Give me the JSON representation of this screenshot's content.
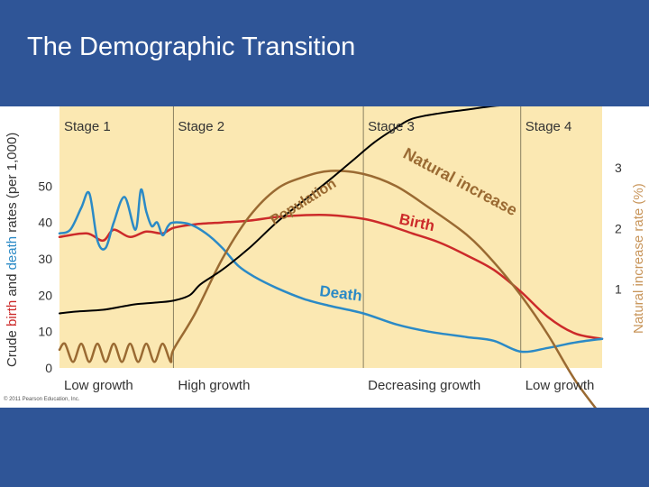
{
  "slide": {
    "title": "The Demographic Transition"
  },
  "figure": {
    "copyright": "© 2011 Pearson Education, Inc."
  },
  "colors": {
    "background": "#2f5597",
    "plot_bg": "#fbe8b2",
    "birth": "#cc2a2a",
    "death": "#2b8ac6",
    "natural_increase": "#9a6a32",
    "population": "#000000",
    "stage_divider": "#8a8060"
  },
  "chart_data": {
    "type": "line",
    "xlabel": "",
    "ylabel": {
      "parts": [
        "Crude ",
        "birth",
        " and ",
        "death",
        " rates (per 1,000)"
      ]
    },
    "y2label": "Natural increase rate (%)",
    "ylim": [
      0,
      60
    ],
    "y2lim": [
      -0.3,
      3.3
    ],
    "yticks": [
      0,
      10,
      20,
      30,
      40,
      50
    ],
    "y2ticks": [
      1,
      2,
      3
    ],
    "xlim": [
      0,
      100
    ],
    "grid": false,
    "stages": [
      {
        "label": "Stage 1",
        "x_start": 0,
        "x_end": 21
      },
      {
        "label": "Stage 2",
        "x_start": 21,
        "x_end": 56
      },
      {
        "label": "Stage 3",
        "x_start": 56,
        "x_end": 85
      },
      {
        "label": "Stage 4",
        "x_start": 85,
        "x_end": 100
      }
    ],
    "growth_labels": [
      {
        "label": "Low growth",
        "x": 0
      },
      {
        "label": "High growth",
        "x": 21
      },
      {
        "label": "Decreasing growth",
        "x": 56
      },
      {
        "label": "Low growth",
        "x": 85
      }
    ],
    "series": [
      {
        "name": "Birth",
        "axis": "left",
        "x": [
          0,
          5,
          8,
          10,
          13,
          16,
          19,
          21,
          25,
          30,
          35,
          40,
          45,
          50,
          56,
          60,
          65,
          70,
          75,
          80,
          85,
          90,
          95,
          100
        ],
        "y": [
          36,
          37,
          35,
          38,
          36,
          37.5,
          37,
          38.5,
          39.5,
          40,
          40.5,
          41.5,
          42,
          42,
          41,
          39.5,
          37,
          34.5,
          31,
          27,
          21,
          14,
          9.5,
          8
        ]
      },
      {
        "name": "Death",
        "axis": "left",
        "x": [
          0,
          2,
          4,
          5.5,
          7,
          8.5,
          10,
          12,
          14,
          15,
          16,
          17,
          18,
          19,
          20,
          21,
          24,
          27,
          30,
          33,
          36,
          40,
          45,
          50,
          56,
          62,
          68,
          75,
          80,
          85,
          90,
          95,
          100
        ],
        "y": [
          37,
          38,
          44,
          48,
          35,
          33,
          40,
          47,
          38,
          49,
          43,
          39,
          40,
          36.5,
          39,
          40,
          39.5,
          37,
          33,
          28,
          25,
          22,
          19,
          17,
          15,
          12,
          10,
          8.5,
          7.5,
          4.5,
          5.5,
          7,
          8
        ]
      },
      {
        "name": "Natural increase",
        "axis": "right",
        "x": [
          0,
          1,
          2.5,
          4,
          5.5,
          7,
          8.5,
          10,
          11.5,
          13,
          14.5,
          16,
          17.5,
          19,
          20.5,
          21,
          25,
          30,
          35,
          40,
          45,
          50,
          56,
          62,
          68,
          75,
          80,
          85,
          90,
          95,
          100
        ],
        "y": [
          0,
          0.1,
          -0.2,
          0.1,
          -0.2,
          0.1,
          -0.2,
          0.1,
          -0.2,
          0.1,
          -0.2,
          0.1,
          -0.2,
          0.1,
          -0.2,
          0,
          0.6,
          1.5,
          2.2,
          2.65,
          2.85,
          2.95,
          2.9,
          2.7,
          2.35,
          1.9,
          1.45,
          0.9,
          0.25,
          -0.5,
          -1.1
        ]
      },
      {
        "name": "Population",
        "axis": "hidden",
        "x": [
          0,
          3,
          8,
          12,
          14,
          18,
          21,
          24,
          26,
          30,
          35,
          40,
          45,
          50,
          54,
          58,
          62,
          65,
          70,
          75,
          80,
          85,
          90,
          95,
          100
        ],
        "y": [
          15,
          15.5,
          16,
          17,
          17.5,
          18,
          18.5,
          20,
          23,
          27,
          33,
          40,
          46,
          52,
          57,
          62,
          66,
          68.5,
          70,
          71,
          72,
          72.5,
          73,
          73.5,
          74
        ]
      }
    ],
    "curve_labels": [
      {
        "text": "Birth"
      },
      {
        "text": "Death"
      },
      {
        "text": "Natural increase"
      },
      {
        "text": "Population"
      }
    ]
  }
}
